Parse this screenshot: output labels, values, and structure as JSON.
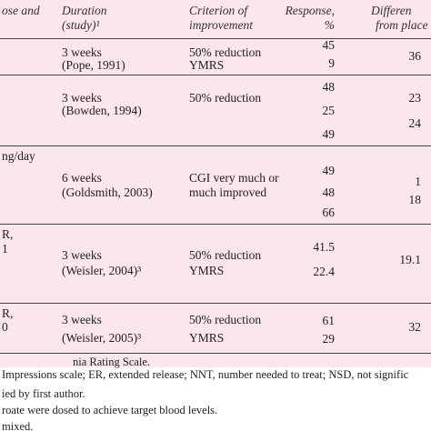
{
  "table": {
    "header": [
      [
        "ose and"
      ],
      [
        "Duration",
        "(study)¹"
      ],
      [
        "Criterion of",
        "improvement"
      ],
      [
        "Response,",
        "%"
      ],
      [
        "Differen",
        "from place"
      ]
    ],
    "rows": [
      {
        "left": [],
        "duration": [
          "3 weeks",
          "(Pope, 1991)"
        ],
        "criterion": [
          "50% reduction",
          "YMRS"
        ],
        "responses": [
          45,
          9
        ],
        "differences": [
          36
        ]
      },
      {
        "left": [],
        "duration": [
          "3 weeks",
          "(Bowden, 1994)"
        ],
        "criterion": [
          "50% reduction"
        ],
        "responses": [
          48,
          25,
          49
        ],
        "differences": [
          23,
          24
        ]
      },
      {
        "left": [
          "ng/day"
        ],
        "duration": [
          "6 weeks",
          "(Goldsmith, 2003)"
        ],
        "criterion": [
          "CGI very much or",
          "much improved"
        ],
        "responses": [
          49,
          48,
          66
        ],
        "differences": [
          1,
          18
        ]
      },
      {
        "left": [
          "R,",
          "1"
        ],
        "duration": [
          "3 weeks",
          "(Weisler, 2004)³"
        ],
        "criterion": [
          "50% reduction",
          "YMRS"
        ],
        "responses": [
          41.5,
          22.4
        ],
        "differences": [
          19.1
        ]
      },
      {
        "left": [
          "R,",
          "0"
        ],
        "duration": [
          "3 weeks",
          "(Weisler, 2005)³"
        ],
        "criterion": [
          "50% reduction",
          "YMRS"
        ],
        "responses": [
          61,
          29
        ],
        "differences": [
          32
        ]
      }
    ],
    "footnotes": [
      "nia Rating Scale.",
      "Impressions scale; ER, extended release; NNT, number needed to treat; NSD, not signific",
      "ied by first author.",
      "roate were dosed to achieve target blood levels.",
      "mixed."
    ]
  }
}
